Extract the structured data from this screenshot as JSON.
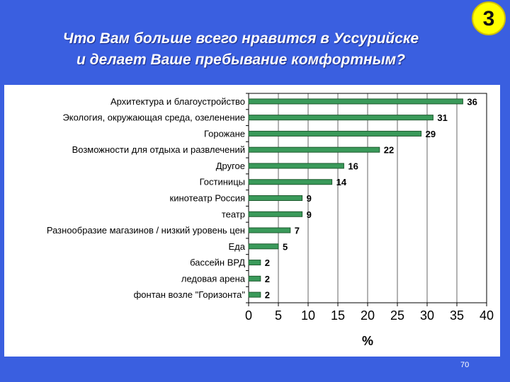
{
  "header": {
    "title_line1": "Что Вам больше всего нравится в Уссурийске",
    "title_line2": "и делает Ваше пребывание комфортным?",
    "badge": "3"
  },
  "footer": {
    "page_number": "70"
  },
  "colors": {
    "background": "#3a5fe0",
    "bar_fill": "#3a9a5a",
    "bar_edge": "#1e5a2e",
    "badge": "#ffff00"
  },
  "chart_data": {
    "type": "bar",
    "orientation": "horizontal",
    "categories": [
      "Архитектура и благоустройство",
      "Экология, окружающая среда, озеленение",
      "Горожане",
      "Возможности для отдыха и развлечений",
      "Другое",
      "Гостиницы",
      "кинотеатр Россия",
      "театр",
      "Разнообразие магазинов / низкий уровень цен",
      "Еда",
      "бассейн ВРД",
      "ледовая арена",
      "фонтан возле \"Горизонта\""
    ],
    "values": [
      36,
      31,
      29,
      22,
      16,
      14,
      9,
      9,
      7,
      5,
      2,
      2,
      2
    ],
    "xlabel": "%",
    "xlim": [
      0,
      40
    ],
    "xticks": [
      0,
      5,
      10,
      15,
      20,
      25,
      30,
      35,
      40
    ],
    "grid": "vertical",
    "data_labels": true
  }
}
